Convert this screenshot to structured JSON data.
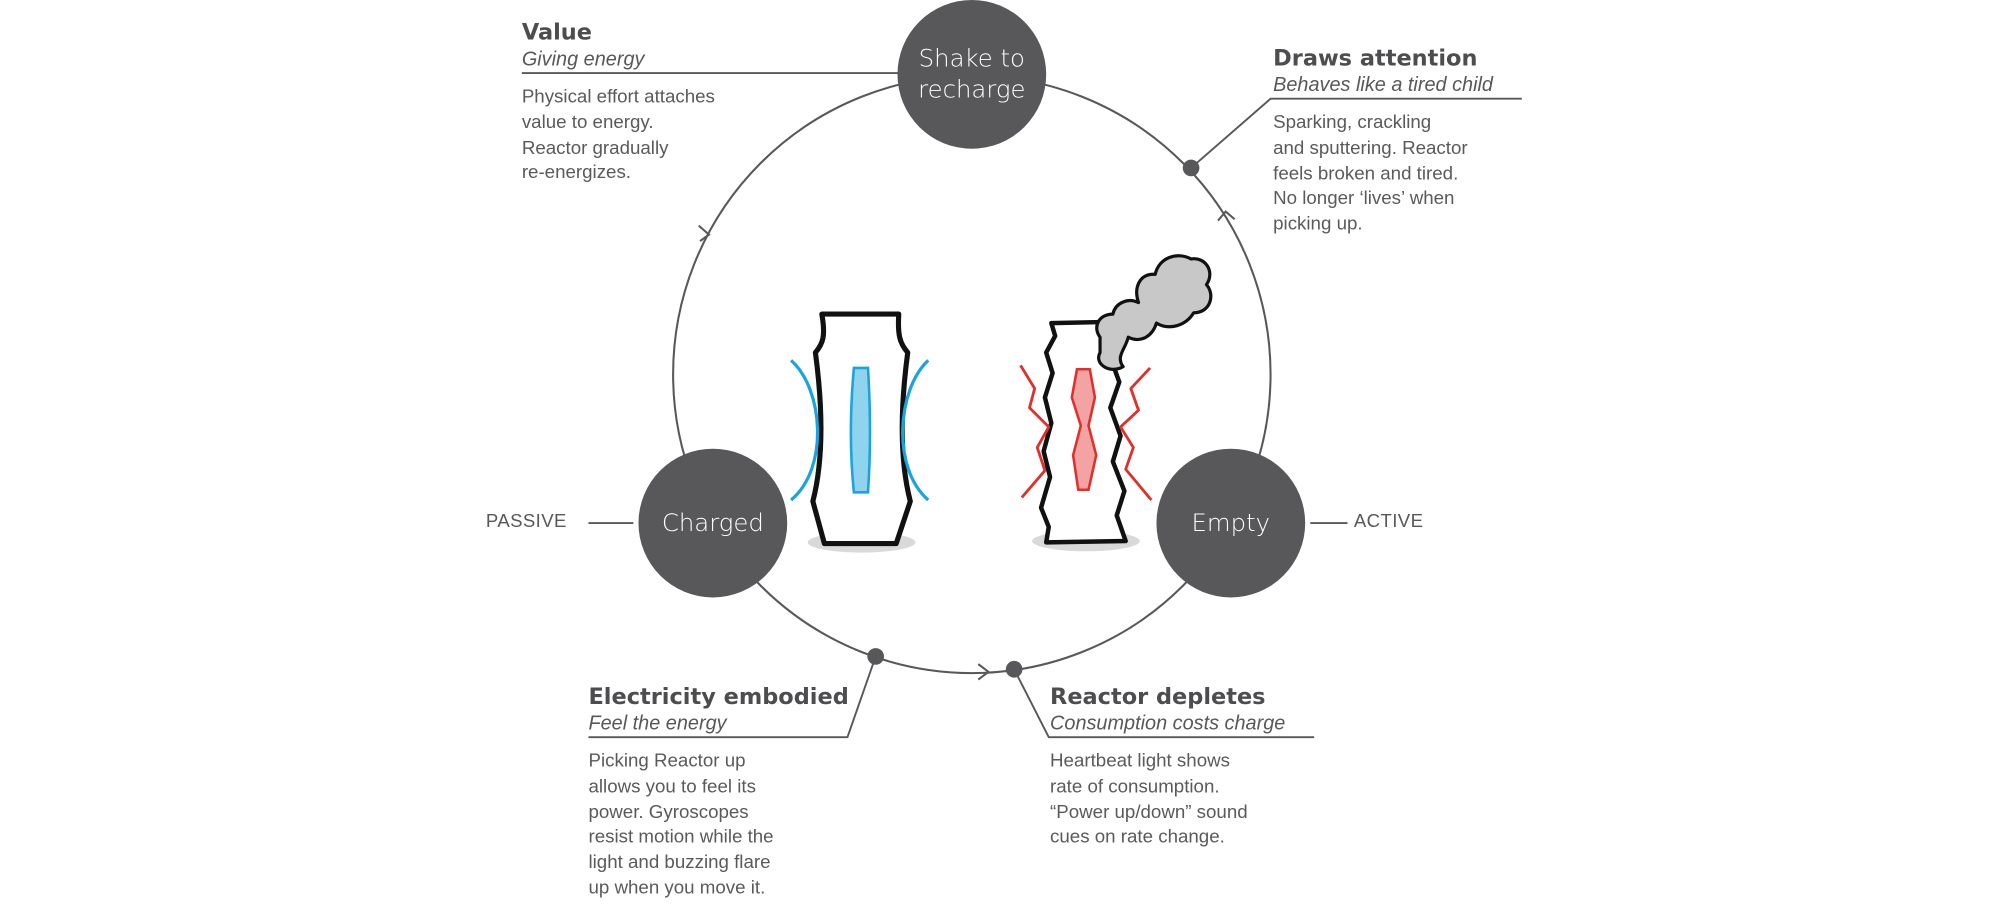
{
  "nodes": {
    "shake": "Shake to\nrecharge",
    "charged": "Charged",
    "empty": "Empty"
  },
  "labels": {
    "passive": "PASSIVE",
    "active": "ACTIVE"
  },
  "blocks": {
    "value": {
      "title": "Value",
      "subtitle": "Giving energy",
      "body": "Physical effort attaches\nvalue to energy.\nReactor gradually\nre-energizes."
    },
    "attention": {
      "title": "Draws attention",
      "subtitle": "Behaves like a tired child",
      "body": "Sparking, crackling\nand sputtering. Reactor\nfeels broken and tired.\nNo longer ‘lives’ when\npicking up."
    },
    "embodied": {
      "title": "Electricity embodied",
      "subtitle": "Feel the energy",
      "body": "Picking Reactor up\nallows you to feel its\npower. Gyroscopes\nresist motion while the\nlight and buzzing flare\nup when you move it."
    },
    "depletes": {
      "title": "Reactor depletes",
      "subtitle": "Consumption costs charge",
      "body": "Heartbeat light shows\nrate of consumption.\n“Power up/down” sound\ncues on rate change."
    }
  },
  "colors": {
    "node_fill": "#58585a",
    "line": "#58585a",
    "charged_glow": "#1aa3dd",
    "spark": "#e0302b",
    "smoke": "#c8c8c8"
  }
}
